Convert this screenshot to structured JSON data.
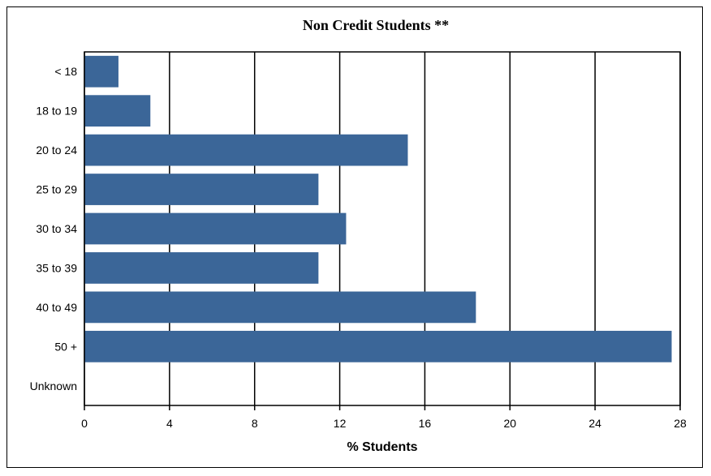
{
  "chart_data": {
    "type": "bar",
    "orientation": "horizontal",
    "title": "Non Credit Students **",
    "xlabel": "% Students",
    "ylabel": "",
    "categories": [
      "< 18",
      "18 to 19",
      "20 to 24",
      "25 to 29",
      "30 to 34",
      "35 to 39",
      "40 to 49",
      "50 +",
      "Unknown"
    ],
    "values": [
      1.6,
      3.1,
      15.2,
      11.0,
      12.3,
      11.0,
      18.4,
      27.6,
      0
    ],
    "xlim": [
      0,
      28
    ],
    "xticks": [
      "0",
      "4",
      "8",
      "12",
      "16",
      "20",
      "24",
      "28"
    ],
    "grid": "vertical",
    "legend": "none",
    "bar_color": "#3b6698"
  }
}
